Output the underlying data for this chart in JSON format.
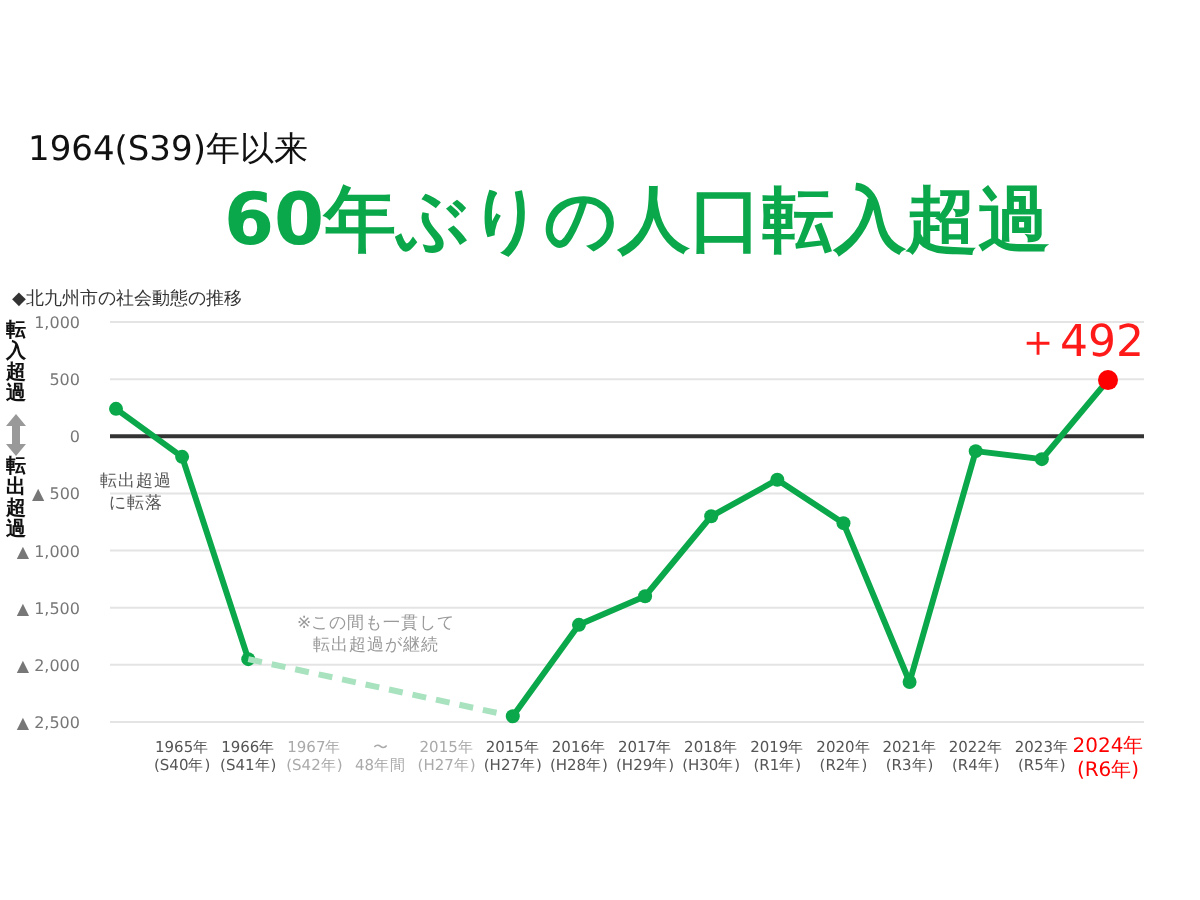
{
  "chart_data": {
    "type": "line",
    "subtitle": "1964(S39)年以来",
    "title": "60年ぶりの人口転入超過",
    "categories": [
      null,
      "1965年\n(S40年)",
      "1966年\n(S41年)",
      "1967年\n(S42年)",
      "〜\n48年間",
      "2015年\n(H27年)",
      "2015年\n(H27年)",
      "2016年\n(H28年)",
      "2017年\n(H29年)",
      "2018年\n(H30年)",
      "2019年\n(R1年)",
      "2020年\n(R2年)",
      "2021年\n(R3年)",
      "2022年\n(R4年)",
      "2023年\n(R5年)",
      "2024年\n(R6年)"
    ],
    "series": [
      {
        "color": "#0aa84a",
        "marker": "circle",
        "line_style": "solid",
        "values": [
          240,
          -180,
          -1950,
          null,
          null,
          null,
          null,
          null,
          null,
          null,
          null,
          null,
          null,
          null,
          null,
          null
        ]
      },
      {
        "color": "#a8e2bf",
        "marker": "none",
        "line_style": "dashed",
        "values": [
          null,
          null,
          -1950,
          null,
          null,
          null,
          -2450,
          null,
          null,
          null,
          null,
          null,
          null,
          null,
          null,
          null
        ]
      },
      {
        "color": "#0aa84a",
        "marker": "circle",
        "line_style": "solid",
        "values": [
          null,
          null,
          null,
          null,
          null,
          null,
          -2450,
          -1650,
          -1400,
          -700,
          -380,
          -760,
          -2150,
          -130,
          -200,
          492
        ]
      },
      {
        "type": "scatter",
        "color": "#ff0000",
        "marker": "circle",
        "values": [
          null,
          null,
          null,
          null,
          null,
          null,
          null,
          null,
          null,
          null,
          null,
          null,
          null,
          null,
          null,
          492
        ]
      }
    ],
    "ylim": [
      -2500,
      1000
    ],
    "yticks": [
      {
        "value": 1000,
        "label": "1,000"
      },
      500,
      0,
      {
        "value": -500,
        "label": "▲ 500"
      },
      {
        "value": -1000,
        "label": "▲ 1,000"
      },
      {
        "value": -1500,
        "label": "▲ 1,500"
      },
      {
        "value": -2000,
        "label": "▲ 2,000"
      },
      {
        "value": -2500,
        "label": "▲ 2,500"
      }
    ],
    "grid": "y",
    "ref_lines": [
      {
        "axis": "y",
        "value": 0,
        "color": "#333333"
      }
    ],
    "annotations": [
      "◆北九州市の社会動態の推移",
      "転入超過",
      "転出超過",
      "転出超過に転落",
      "※この間も一貫して転出超過が継続",
      {
        "text": "＋492",
        "x": "2024年\n(R6年)",
        "y": 492
      }
    ]
  }
}
